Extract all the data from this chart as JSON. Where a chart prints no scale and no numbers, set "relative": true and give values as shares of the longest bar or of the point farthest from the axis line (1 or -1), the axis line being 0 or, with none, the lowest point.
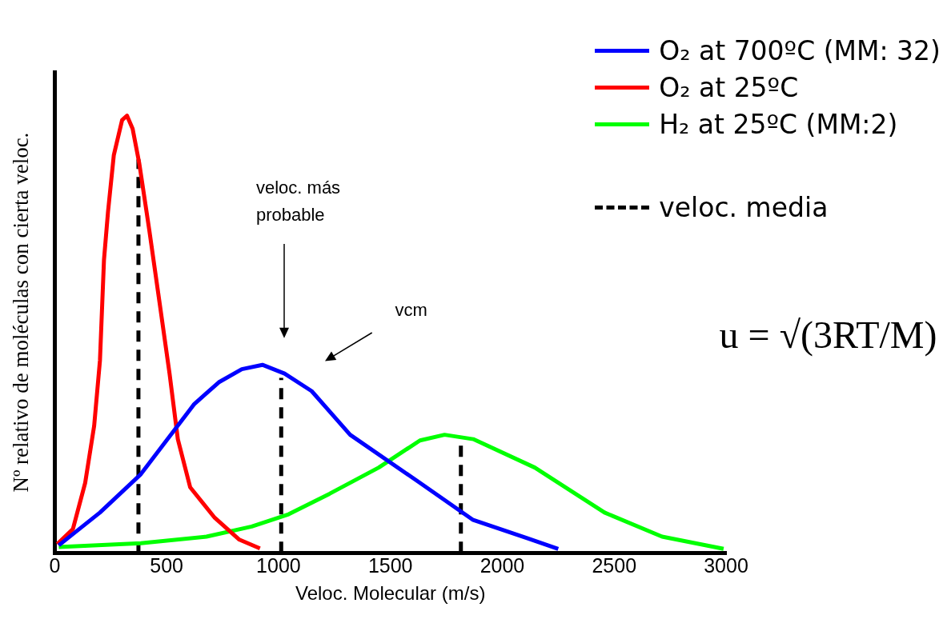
{
  "chart_data": {
    "type": "line",
    "relative": true,
    "xlabel": "Veloc. Molecular (m/s)",
    "ylabel": "Nº relativo de moléculas con cierta veloc.",
    "xlim": [
      0,
      3000
    ],
    "xticks": [
      0,
      500,
      1000,
      1500,
      2000,
      2500,
      3000
    ],
    "grid": false,
    "legend": "top right",
    "marker": "none",
    "series": [
      {
        "name": "O₂ at 700ºC (MM: 32)",
        "color": "#0000ff",
        "x": [
          18,
          202,
          385,
          623,
          733,
          836,
          928,
          1027,
          1148,
          1320,
          1632,
          1870,
          2108,
          2250
        ],
        "values": [
          0.017,
          0.092,
          0.18,
          0.34,
          0.39,
          0.42,
          0.43,
          0.41,
          0.37,
          0.27,
          0.16,
          0.075,
          0.034,
          0.009
        ]
      },
      {
        "name": "O₂ at 25ºC",
        "color": "#ff0000",
        "x": [
          11,
          81,
          136,
          176,
          202,
          220,
          238,
          264,
          301,
          323,
          348,
          378,
          422,
          469,
          513,
          550,
          605,
          715,
          825,
          917
        ],
        "values": [
          0.02,
          0.054,
          0.16,
          0.29,
          0.44,
          0.67,
          0.78,
          0.91,
          0.99,
          1.0,
          0.97,
          0.89,
          0.74,
          0.57,
          0.41,
          0.26,
          0.15,
          0.08,
          0.03,
          0.01
        ]
      },
      {
        "name": "H₂ at 25ºC (MM:2)",
        "color": "#00ff00",
        "x": [
          18,
          385,
          678,
          880,
          1045,
          1228,
          1448,
          1632,
          1742,
          1870,
          2145,
          2457,
          2714,
          2989
        ],
        "values": [
          0.013,
          0.022,
          0.037,
          0.06,
          0.088,
          0.135,
          0.195,
          0.257,
          0.27,
          0.26,
          0.195,
          0.092,
          0.037,
          0.009
        ]
      },
      {
        "name": "veloc. media",
        "color": "#000000",
        "line_style": "dashed",
        "x": [
          374,
          374
        ],
        "values": [
          0,
          0.9
        ]
      },
      {
        "color": "#000000",
        "line_style": "dashed",
        "x": [
          1012,
          1012
        ],
        "values": [
          0,
          0.4
        ]
      },
      {
        "color": "#000000",
        "line_style": "dashed",
        "x": [
          1815,
          1815
        ],
        "values": [
          0,
          0.25
        ]
      }
    ],
    "annotations": [
      "veloc. más probable",
      "vcm",
      "u = √(3RT/M)"
    ]
  }
}
